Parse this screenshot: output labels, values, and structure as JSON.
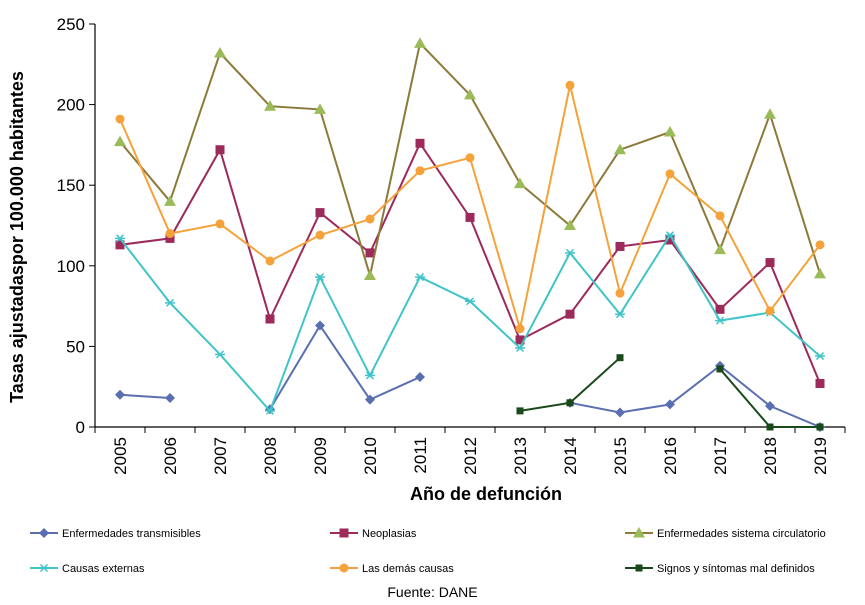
{
  "chart_data": {
    "type": "line",
    "title": "",
    "xlabel": "Año de defunción",
    "ylabel": "Tasas ajustadaspor 100.000 habitantes",
    "ylim": [
      0,
      250
    ],
    "yticks": [
      0,
      50,
      100,
      150,
      200,
      250
    ],
    "categories": [
      "2005",
      "2006",
      "2007",
      "2008",
      "2009",
      "2010",
      "2011",
      "2012",
      "2013",
      "2014",
      "2015",
      "2016",
      "2017",
      "2018",
      "2019"
    ],
    "grid": false,
    "legend_position": "bottom",
    "series": [
      {
        "name": "Enfermedades transmisibles",
        "color": "#5a6fb0",
        "marker": "diamond",
        "values": [
          20,
          18,
          null,
          11,
          63,
          17,
          31,
          null,
          null,
          15,
          9,
          14,
          38,
          13,
          0
        ]
      },
      {
        "name": "Neoplasias",
        "color": "#9c2a5a",
        "marker": "square",
        "values": [
          113,
          117,
          172,
          67,
          133,
          108,
          176,
          130,
          54,
          70,
          112,
          116,
          73,
          102,
          27
        ]
      },
      {
        "name": "Enfermedades sistema circulatorio",
        "color": "#8c7a3a",
        "marker": "triangle",
        "values": [
          177,
          140,
          232,
          199,
          197,
          94,
          238,
          206,
          151,
          125,
          172,
          183,
          110,
          194,
          95
        ]
      },
      {
        "name": "Causas externas",
        "color": "#40c4c8",
        "marker": "asterisk",
        "values": [
          117,
          77,
          45,
          10,
          93,
          32,
          93,
          78,
          49,
          108,
          70,
          119,
          66,
          71,
          44
        ]
      },
      {
        "name": "Las demás causas",
        "color": "#f5a23a",
        "marker": "circle",
        "values": [
          191,
          120,
          126,
          103,
          119,
          129,
          159,
          167,
          61,
          212,
          83,
          157,
          131,
          72,
          113
        ]
      },
      {
        "name": "Signos y síntomas mal definidos",
        "color": "#1a4a1a",
        "marker": "smallsquare",
        "values": [
          null,
          null,
          null,
          null,
          null,
          null,
          null,
          null,
          10,
          15,
          43,
          null,
          36,
          0,
          0
        ]
      }
    ]
  },
  "source_text": "Fuente: DANE"
}
